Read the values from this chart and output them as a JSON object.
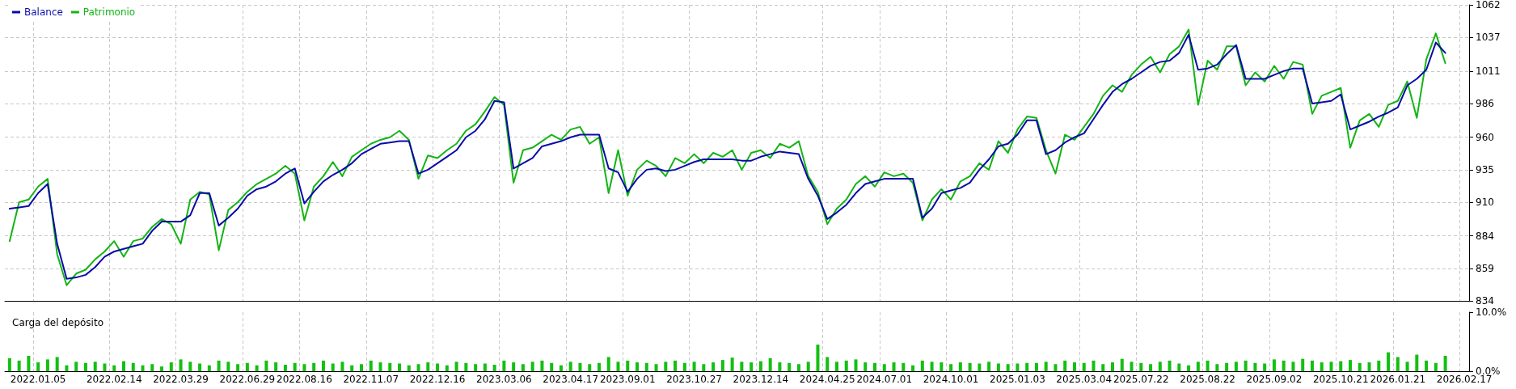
{
  "chart_data": [
    {
      "type": "line",
      "legend": "top left",
      "grid": true,
      "tick_labels": "y",
      "marker": "none",
      "line_style": "solid",
      "categories": [
        null,
        null,
        null,
        "2022.01.05",
        null,
        null,
        null,
        null,
        null,
        null,
        null,
        "2022.02.14",
        null,
        null,
        null,
        null,
        null,
        null,
        "2022.03.29",
        null,
        null,
        null,
        null,
        null,
        null,
        "2022.06.29",
        null,
        null,
        null,
        null,
        null,
        "2022.08.16",
        null,
        null,
        null,
        null,
        null,
        null,
        "2022.11.07",
        null,
        null,
        null,
        null,
        null,
        null,
        "2022.12.16",
        null,
        null,
        null,
        null,
        null,
        null,
        "2023.03.06",
        null,
        null,
        null,
        null,
        null,
        null,
        "2023.04.17",
        null,
        null,
        null,
        null,
        null,
        "2023.09.01",
        null,
        null,
        null,
        null,
        null,
        null,
        "2023.10.27",
        null,
        null,
        null,
        null,
        null,
        null,
        "2023.12.14",
        null,
        null,
        null,
        null,
        null,
        null,
        "2024.04.25",
        null,
        null,
        null,
        null,
        null,
        "2024.07.01",
        null,
        null,
        null,
        null,
        null,
        null,
        "2024.10.01",
        null,
        null,
        null,
        null,
        null,
        null,
        "2025.01.03",
        null,
        null,
        null,
        null,
        null,
        null,
        "2025.03.04",
        null,
        null,
        null,
        null,
        null,
        "2025.07.22",
        null,
        null,
        null,
        null,
        null,
        null,
        "2025.08.22",
        null,
        null,
        null,
        null,
        null,
        null,
        "2025.09.02",
        null,
        null,
        null,
        null,
        null,
        null,
        "2025.10.21",
        null,
        null,
        null,
        null,
        null,
        "2026.01.21",
        null,
        null,
        null,
        null,
        null,
        null,
        "2026.02.17"
      ],
      "ylim": [
        834,
        1062
      ],
      "yticks": [
        834,
        859,
        884,
        910,
        935,
        960,
        986,
        1011,
        1037,
        1062
      ],
      "series": [
        {
          "name": "Balance",
          "color": "#0a0aa8",
          "values": [
            905,
            906,
            907,
            917,
            924,
            878,
            851,
            852,
            854,
            860,
            868,
            872,
            874,
            876,
            878,
            888,
            895,
            895,
            895,
            900,
            917,
            917,
            892,
            898,
            905,
            915,
            920,
            922,
            926,
            932,
            936,
            909,
            918,
            926,
            931,
            935,
            940,
            947,
            951,
            955,
            956,
            957,
            957,
            932,
            935,
            940,
            945,
            950,
            960,
            965,
            974,
            988,
            987,
            936,
            940,
            944,
            953,
            955,
            957,
            960,
            962,
            962,
            962,
            936,
            933,
            918,
            928,
            935,
            936,
            934,
            935,
            938,
            941,
            943,
            943,
            943,
            943,
            942,
            942,
            945,
            947,
            949,
            948,
            947,
            928,
            915,
            897,
            902,
            908,
            917,
            924,
            926,
            928,
            928,
            928,
            928,
            898,
            905,
            917,
            919,
            921,
            925,
            935,
            943,
            953,
            955,
            962,
            973,
            973,
            947,
            950,
            956,
            960,
            963,
            974,
            985,
            995,
            1001,
            1005,
            1010,
            1015,
            1018,
            1019,
            1025,
            1039,
            1012,
            1013,
            1016,
            1024,
            1031,
            1005,
            1005,
            1005,
            1008,
            1011,
            1013,
            1013,
            986,
            987,
            988,
            993,
            966,
            969,
            972,
            976,
            979,
            983,
            1000,
            1005,
            1012,
            1033,
            1025,
            null,
            null
          ]
        },
        {
          "name": "Patrimonio",
          "color": "#14b414",
          "values": [
            880,
            910,
            912,
            922,
            928,
            870,
            846,
            855,
            858,
            866,
            872,
            880,
            868,
            880,
            882,
            891,
            897,
            893,
            878,
            912,
            918,
            916,
            873,
            904,
            910,
            918,
            924,
            928,
            932,
            938,
            932,
            896,
            922,
            930,
            941,
            930,
            945,
            950,
            955,
            958,
            960,
            965,
            958,
            928,
            946,
            944,
            950,
            955,
            965,
            970,
            980,
            991,
            985,
            925,
            950,
            952,
            957,
            962,
            958,
            966,
            968,
            955,
            960,
            917,
            950,
            915,
            935,
            942,
            938,
            930,
            944,
            940,
            947,
            940,
            948,
            945,
            950,
            935,
            948,
            950,
            944,
            955,
            952,
            957,
            930,
            918,
            893,
            905,
            912,
            924,
            930,
            922,
            933,
            930,
            932,
            925,
            896,
            912,
            920,
            912,
            926,
            930,
            940,
            935,
            957,
            948,
            966,
            976,
            975,
            950,
            932,
            962,
            958,
            968,
            978,
            992,
            1000,
            995,
            1008,
            1016,
            1022,
            1010,
            1024,
            1030,
            1043,
            985,
            1019,
            1012,
            1030,
            1030,
            1000,
            1010,
            1003,
            1015,
            1005,
            1018,
            1016,
            978,
            992,
            995,
            998,
            952,
            973,
            978,
            968,
            985,
            988,
            1003,
            975,
            1020,
            1040,
            1017,
            null,
            null
          ]
        }
      ]
    },
    {
      "type": "bar",
      "title": "Carga del depósito",
      "grid": "x",
      "color": "#12c012",
      "categories": [
        null,
        null,
        null,
        "2022.01.05",
        null,
        null,
        null,
        null,
        null,
        null,
        null,
        "2022.02.14",
        null,
        null,
        null,
        null,
        null,
        null,
        "2022.03.29",
        null,
        null,
        null,
        null,
        null,
        null,
        "2022.06.29",
        null,
        null,
        null,
        null,
        null,
        "2022.08.16",
        null,
        null,
        null,
        null,
        null,
        null,
        "2022.11.07",
        null,
        null,
        null,
        null,
        null,
        null,
        "2022.12.16",
        null,
        null,
        null,
        null,
        null,
        null,
        "2023.03.06",
        null,
        null,
        null,
        null,
        null,
        null,
        "2023.04.17",
        null,
        null,
        null,
        null,
        null,
        "2023.09.01",
        null,
        null,
        null,
        null,
        null,
        null,
        "2023.10.27",
        null,
        null,
        null,
        null,
        null,
        null,
        "2023.12.14",
        null,
        null,
        null,
        null,
        null,
        null,
        "2024.04.25",
        null,
        null,
        null,
        null,
        null,
        "2024.07.01",
        null,
        null,
        null,
        null,
        null,
        null,
        "2024.10.01",
        null,
        null,
        null,
        null,
        null,
        null,
        "2025.01.03",
        null,
        null,
        null,
        null,
        null,
        null,
        "2025.03.04",
        null,
        null,
        null,
        null,
        null,
        "2025.07.22",
        null,
        null,
        null,
        null,
        null,
        null,
        "2025.08.22",
        null,
        null,
        null,
        null,
        null,
        null,
        "2025.09.02",
        null,
        null,
        null,
        null,
        null,
        null,
        "2025.10.21",
        null,
        null,
        null,
        null,
        null,
        "2026.01.21",
        null,
        null,
        null,
        null,
        null,
        null,
        "2026.02.17"
      ],
      "ylim": [
        0,
        10
      ],
      "yticks": [
        {
          "value": 0,
          "label": "0.0%"
        },
        {
          "value": 10,
          "label": "10.0%"
        }
      ],
      "values": [
        2.2,
        1.8,
        2.6,
        1.5,
        2.0,
        2.4,
        1.0,
        1.6,
        1.4,
        1.6,
        1.3,
        1.0,
        1.7,
        1.4,
        1.0,
        1.2,
        0.8,
        1.5,
        2.0,
        1.6,
        1.3,
        1.0,
        1.8,
        1.6,
        1.2,
        1.4,
        1.0,
        1.8,
        1.5,
        1.1,
        1.4,
        1.2,
        1.4,
        1.8,
        1.3,
        1.6,
        1.0,
        1.2,
        1.8,
        1.5,
        1.4,
        1.3,
        1.0,
        1.2,
        1.5,
        1.3,
        1.0,
        1.6,
        1.4,
        1.2,
        1.3,
        1.1,
        1.8,
        1.5,
        1.2,
        1.6,
        1.8,
        1.4,
        1.0,
        1.6,
        1.4,
        1.2,
        1.4,
        2.4,
        1.6,
        1.8,
        1.5,
        1.4,
        1.2,
        1.6,
        1.8,
        1.4,
        1.6,
        1.2,
        1.5,
        1.9,
        2.3,
        1.6,
        1.5,
        1.7,
        2.2,
        1.5,
        1.4,
        1.2,
        1.6,
        4.5,
        2.4,
        1.6,
        1.8,
        2.0,
        1.5,
        1.4,
        1.2,
        1.5,
        1.4,
        1.0,
        1.8,
        1.6,
        1.5,
        1.2,
        1.5,
        1.4,
        1.3,
        1.6,
        1.3,
        1.2,
        1.3,
        1.4,
        1.4,
        1.6,
        1.2,
        1.8,
        1.5,
        1.4,
        1.8,
        1.2,
        1.5,
        2.1,
        1.6,
        1.4,
        1.2,
        1.6,
        1.8,
        1.3,
        1.0,
        1.6,
        1.8,
        1.2,
        1.4,
        1.6,
        1.8,
        1.4,
        1.3,
        2.0,
        1.8,
        1.6,
        2.1,
        1.8,
        1.5,
        1.6,
        1.7,
        1.9,
        1.4,
        1.5,
        1.8,
        3.2,
        2.4,
        1.6,
        2.8,
        1.8,
        1.4,
        2.6,
        null,
        null
      ]
    }
  ]
}
